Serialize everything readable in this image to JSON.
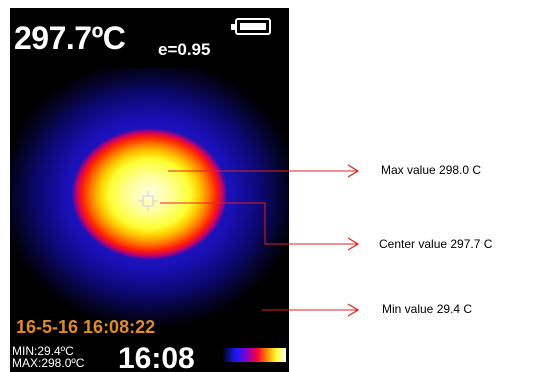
{
  "screen": {
    "temperature": "297.7ºC",
    "emissivity": "e=0.95",
    "datetime": "16-5-16 16:08:22",
    "min": "MIN:29.4ºC",
    "max": "MAX:298.0ºC",
    "clock": "16:08"
  },
  "annotations": {
    "max_label": "Max value 298.0 C",
    "center_label": "Center value 297.7 C",
    "min_label": "Min value 29.4 C"
  },
  "colors": {
    "arrow": "#e02020",
    "datetime": "#e08a2a",
    "screen_bg": "#000000"
  },
  "icons": {
    "battery": "battery-icon",
    "crosshair": "crosshair-icon",
    "scale": "color-scale-bar"
  }
}
